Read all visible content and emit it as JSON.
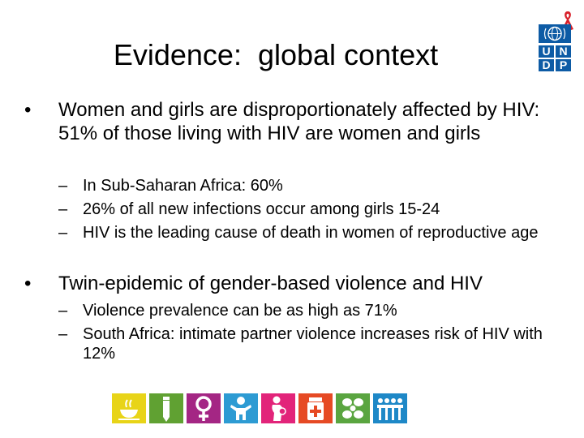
{
  "slide": {
    "title": "Evidence:  global context",
    "logo_letters": [
      "U",
      "N",
      "D",
      "P"
    ],
    "bullets": [
      {
        "text": "Women and girls are disproportionately affected by HIV: 51% of those living with HIV are women and girls",
        "subs": [
          "In Sub-Saharan Africa: 60%",
          "26% of all new infections occur among girls 15-24",
          "HIV is the leading cause of death in women of reproductive age"
        ]
      },
      {
        "text": "Twin-epidemic of gender-based violence and HIV",
        "subs": [
          "Violence prevalence can be as high as 71%",
          "South Africa: intimate partner violence increases risk of HIV with 12%"
        ]
      }
    ],
    "bullet_glyph": "•",
    "dash_glyph": "–"
  },
  "mdg_strip": {
    "colors": [
      "#e8d418",
      "#60a132",
      "#a42684",
      "#2d9bd3",
      "#e2247a",
      "#e64a24",
      "#5aa540",
      "#1e88c7"
    ],
    "icons": [
      "bowl-icon",
      "pencil-icon",
      "female-symbol-icon",
      "child-icon",
      "mother-icon",
      "medicine-icon",
      "leaf-icon",
      "people-icon"
    ]
  }
}
